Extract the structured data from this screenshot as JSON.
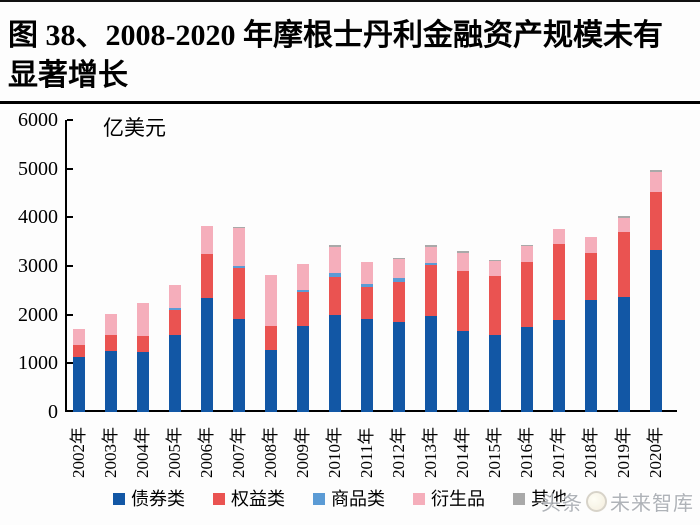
{
  "header": {
    "title_line1": "图 38、2008-2020 年摩根士丹利金融资产规模未有",
    "title_line2": "显著增长",
    "title_full": "图 38、2008-2020 年摩根士丹利金融资产规模未有显著增长"
  },
  "chart_data": {
    "type": "bar",
    "stacked": true,
    "unit_label": "亿美元",
    "categories": [
      "2002年",
      "2003年",
      "2004年",
      "2005年",
      "2006年",
      "2007年",
      "2008年",
      "2009年",
      "2010年",
      "2011年",
      "2012年",
      "2013年",
      "2014年",
      "2015年",
      "2016年",
      "2017年",
      "2018年",
      "2019年",
      "2020年"
    ],
    "series": [
      {
        "name": "债券类",
        "color": "#1257A5",
        "values": [
          1130,
          1255,
          1235,
          1590,
          2350,
          1920,
          1270,
          1770,
          1990,
          1910,
          1840,
          1970,
          1670,
          1580,
          1740,
          1900,
          2310,
          2365,
          3330
        ]
      },
      {
        "name": "权益类",
        "color": "#EA5351",
        "values": [
          240,
          320,
          325,
          500,
          905,
          1045,
          495,
          700,
          790,
          650,
          835,
          1050,
          1225,
          1215,
          1350,
          1545,
          960,
          1325,
          1200
        ]
      },
      {
        "name": "商品类",
        "color": "#5B9BD5",
        "values": [
          0,
          0,
          0,
          55,
          0,
          40,
          0,
          40,
          80,
          80,
          80,
          50,
          0,
          0,
          0,
          0,
          0,
          0,
          0
        ]
      },
      {
        "name": "衍生品",
        "color": "#F5AEBB",
        "values": [
          345,
          435,
          670,
          460,
          570,
          770,
          1050,
          530,
          535,
          445,
          380,
          330,
          375,
          315,
          320,
          325,
          320,
          305,
          410
        ]
      },
      {
        "name": "其他",
        "color": "#A9A9A9",
        "values": [
          0,
          0,
          0,
          0,
          0,
          30,
          0,
          0,
          40,
          0,
          25,
          40,
          40,
          20,
          30,
          0,
          0,
          35,
          40
        ]
      }
    ],
    "totals": [
      1715,
      2010,
      2230,
      2605,
      3825,
      3805,
      2815,
      3040,
      3435,
      3085,
      3160,
      3440,
      3310,
      3130,
      3440,
      3770,
      3590,
      4030,
      4980
    ],
    "ylim": [
      0,
      6000
    ],
    "yticks": [
      0,
      1000,
      2000,
      3000,
      4000,
      5000,
      6000
    ],
    "grid": false,
    "legend_position": "bottom"
  },
  "watermark": {
    "prefix": "头条",
    "suffix": "未来智库"
  }
}
